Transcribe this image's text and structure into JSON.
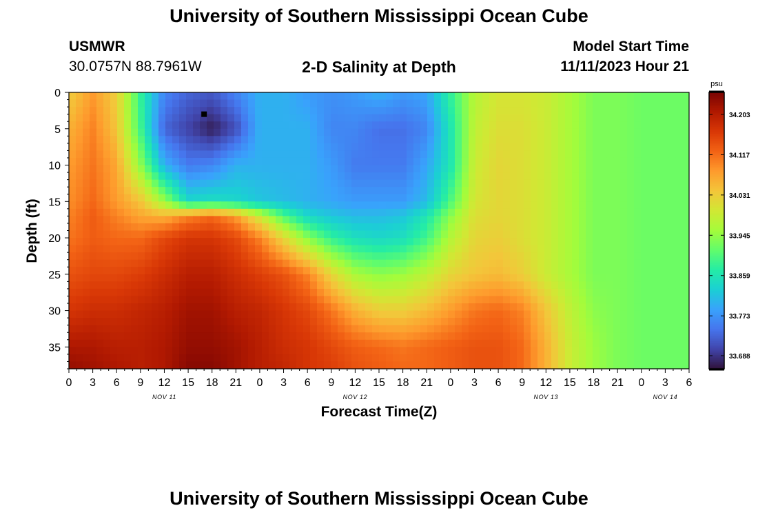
{
  "header": {
    "title": "University of Southern Mississippi Ocean Cube",
    "station": "USMWR",
    "coordinates": "30.0757N  88.7961W",
    "subtitle": "2-D Salinity at Depth",
    "model_start_label": "Model Start Time",
    "model_start_value": "11/11/2023 Hour 21"
  },
  "footer": {
    "title": "University of Southern Mississippi Ocean Cube"
  },
  "chart_data": {
    "type": "heatmap",
    "title": "2-D Salinity at Depth",
    "xlabel": "Forecast Time(Z)",
    "ylabel": "Depth (ft)",
    "x_ticks": [
      "0",
      "3",
      "6",
      "9",
      "12",
      "15",
      "18",
      "21",
      "0",
      "3",
      "6",
      "9",
      "12",
      "15",
      "18",
      "21",
      "0",
      "3",
      "6",
      "9",
      "12",
      "15",
      "18",
      "21",
      "0",
      "3",
      "6"
    ],
    "x_day_labels": [
      {
        "label": "NOV 11",
        "at_tick": 4
      },
      {
        "label": "NOV 12",
        "at_tick": 12
      },
      {
        "label": "NOV 13",
        "at_tick": 20
      },
      {
        "label": "NOV 14",
        "at_tick": 25
      }
    ],
    "x_range_hours": [
      0,
      78
    ],
    "y_ticks": [
      0,
      5,
      10,
      15,
      20,
      25,
      30,
      35
    ],
    "ylim": [
      0,
      38
    ],
    "y_inverted": true,
    "colorbar": {
      "unit": "psu",
      "min": 33.66,
      "max": 34.25,
      "ticks": [
        "34.203",
        "34.117",
        "34.031",
        "33.945",
        "33.859",
        "33.773",
        "33.688"
      ],
      "tick_values": [
        34.203,
        34.117,
        34.031,
        33.945,
        33.859,
        33.773,
        33.688
      ]
    },
    "colormap": [
      "#30123b",
      "#4145ab",
      "#4675ed",
      "#39a2fc",
      "#1bcfd4",
      "#24eca6",
      "#61fc6c",
      "#a4fc3b",
      "#d1e834",
      "#f3c63a",
      "#fe9b2d",
      "#f36315",
      "#d93806",
      "#b11901",
      "#7a0402"
    ],
    "salinity_field": {
      "times_hours": [
        0,
        3,
        6,
        9,
        12,
        15,
        18,
        21,
        24,
        27,
        30,
        33,
        36,
        39,
        42,
        45,
        48,
        51,
        54,
        57,
        60,
        63,
        66,
        69,
        72,
        75,
        78
      ],
      "depths_ft": [
        0,
        5,
        10,
        15,
        17,
        20,
        25,
        30,
        35,
        38
      ],
      "values": [
        [
          34.03,
          34.08,
          34.03,
          33.88,
          33.76,
          33.73,
          33.72,
          33.76,
          33.8,
          33.8,
          33.78,
          33.77,
          33.78,
          33.8,
          33.78,
          33.79,
          33.88,
          33.97,
          34.0,
          34.0,
          33.99,
          33.96,
          33.93,
          33.93,
          33.92,
          33.92,
          33.92
        ],
        [
          34.06,
          34.1,
          34.04,
          33.89,
          33.73,
          33.7,
          33.67,
          33.71,
          33.8,
          33.8,
          33.8,
          33.76,
          33.76,
          33.74,
          33.74,
          33.76,
          33.86,
          33.98,
          34.01,
          34.01,
          33.99,
          33.96,
          33.93,
          33.93,
          33.92,
          33.92,
          33.92
        ],
        [
          34.08,
          34.11,
          34.07,
          33.94,
          33.8,
          33.75,
          33.76,
          33.8,
          33.8,
          33.8,
          33.8,
          33.78,
          33.75,
          33.75,
          33.75,
          33.79,
          33.86,
          33.99,
          34.02,
          34.01,
          33.99,
          33.96,
          33.93,
          33.93,
          33.92,
          33.92,
          33.92
        ],
        [
          34.09,
          34.12,
          34.08,
          34.04,
          33.95,
          33.84,
          33.85,
          33.84,
          33.82,
          33.81,
          33.8,
          33.79,
          33.78,
          33.78,
          33.78,
          33.81,
          33.9,
          34.0,
          34.02,
          34.01,
          33.99,
          33.96,
          33.93,
          33.93,
          33.92,
          33.92,
          33.92
        ],
        [
          34.1,
          34.13,
          34.1,
          34.07,
          34.06,
          34.1,
          34.12,
          34.08,
          33.99,
          33.9,
          33.84,
          33.82,
          33.81,
          33.81,
          33.82,
          33.86,
          33.94,
          34.01,
          34.02,
          34.01,
          33.99,
          33.96,
          33.93,
          33.93,
          33.92,
          33.92,
          33.92
        ],
        [
          34.11,
          34.13,
          34.12,
          34.12,
          34.15,
          34.17,
          34.17,
          34.15,
          34.1,
          34.02,
          33.94,
          33.88,
          33.85,
          33.84,
          33.85,
          33.89,
          33.97,
          34.02,
          34.03,
          34.01,
          33.99,
          33.96,
          33.93,
          33.93,
          33.92,
          33.92,
          33.92
        ],
        [
          34.14,
          34.15,
          34.15,
          34.16,
          34.18,
          34.2,
          34.2,
          34.18,
          34.16,
          34.14,
          34.1,
          34.02,
          33.96,
          33.94,
          33.95,
          33.98,
          34.02,
          34.04,
          34.05,
          34.03,
          33.99,
          33.96,
          33.93,
          33.93,
          33.92,
          33.92,
          33.92
        ],
        [
          34.17,
          34.18,
          34.18,
          34.19,
          34.2,
          34.22,
          34.22,
          34.2,
          34.19,
          34.17,
          34.15,
          34.11,
          34.06,
          34.03,
          34.03,
          34.05,
          34.08,
          34.11,
          34.12,
          34.1,
          34.04,
          33.98,
          33.94,
          33.93,
          33.92,
          33.92,
          33.92
        ],
        [
          34.21,
          34.21,
          34.2,
          34.2,
          34.21,
          34.23,
          34.23,
          34.22,
          34.2,
          34.18,
          34.17,
          34.15,
          34.13,
          34.12,
          34.11,
          34.12,
          34.13,
          34.14,
          34.14,
          34.12,
          34.06,
          33.99,
          33.95,
          33.93,
          33.92,
          33.92,
          33.92
        ],
        [
          34.23,
          34.22,
          34.21,
          34.2,
          34.21,
          34.24,
          34.24,
          34.22,
          34.2,
          34.19,
          34.17,
          34.16,
          34.14,
          34.13,
          34.12,
          34.12,
          34.13,
          34.14,
          34.14,
          34.12,
          34.06,
          33.99,
          33.95,
          33.93,
          33.92,
          33.92,
          33.92
        ]
      ]
    },
    "marker": {
      "time_hours": 17,
      "depth_ft": 3
    }
  }
}
